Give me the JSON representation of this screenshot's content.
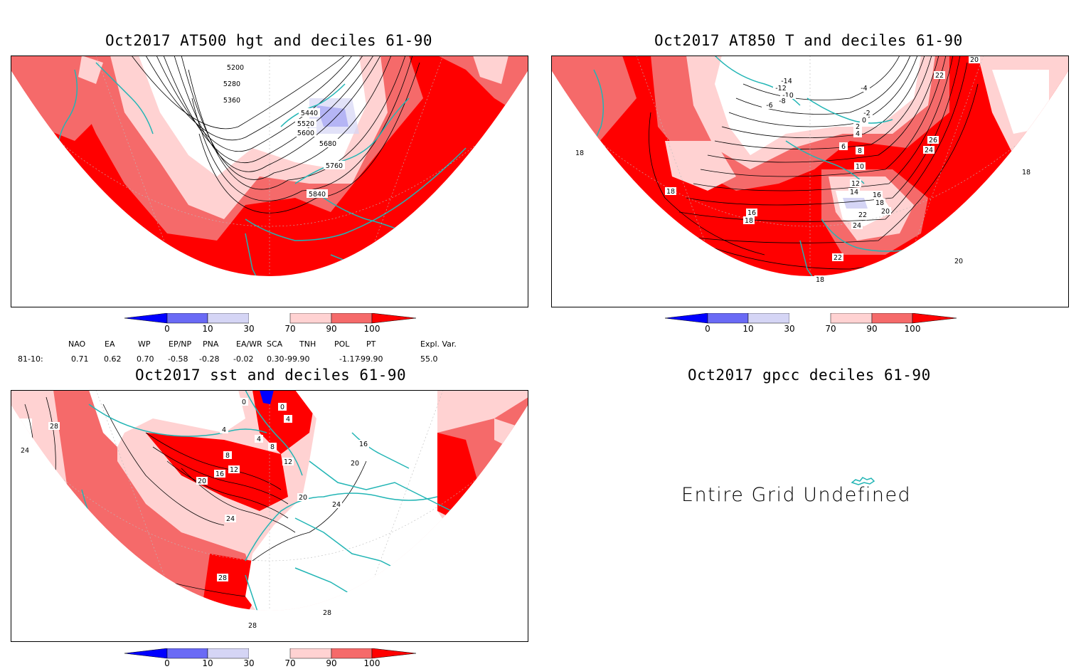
{
  "panels": [
    {
      "title": "Oct2017 AT500 hgt and deciles 61-90",
      "contour_labels": [
        "5200",
        "5280",
        "5360",
        "5440",
        "5520",
        "5600",
        "5680",
        "5760",
        "5840"
      ]
    },
    {
      "title": "Oct2017 AT850 T and deciles 61-90",
      "contour_labels": [
        "-14",
        "-12",
        "-10",
        "-8",
        "-6",
        "-4",
        "-2",
        "0",
        "2",
        "4",
        "6",
        "8",
        "10",
        "12",
        "14",
        "16",
        "18",
        "20",
        "22",
        "24",
        "26",
        "18",
        "16",
        "18",
        "18",
        "20",
        "22",
        "24",
        "18",
        "20",
        "22",
        "18"
      ]
    },
    {
      "title": "Oct2017 sst and deciles 61-90",
      "contour_labels": [
        "28",
        "24",
        "0",
        "0",
        "4",
        "4",
        "4",
        "8",
        "8",
        "12",
        "12",
        "16",
        "16",
        "20",
        "20",
        "20",
        "24",
        "24",
        "28",
        "28",
        "28"
      ]
    },
    {
      "title": "Oct2017 gpcc deciles 61-90",
      "undefined_text": "Entire Grid Undefined"
    }
  ],
  "colorbar": {
    "labels": [
      "0",
      "10",
      "30",
      "70",
      "90",
      "100"
    ],
    "colors": {
      "deep_blue": "#0000ff",
      "mid_blue": "#6a6af5",
      "light_blue": "#d5d5f5",
      "white": "#ffffff",
      "light_red": "#ffd2d2",
      "mid_red": "#f56a6a",
      "red": "#ff0000"
    }
  },
  "indices": {
    "row_label": "81-10:",
    "names": [
      "NAO",
      "EA",
      "WP",
      "EP/NP",
      "PNA",
      "EA/WR",
      "SCA",
      "TNH",
      "POL",
      "PT",
      "Expl. Var."
    ],
    "values": [
      "0.71",
      "0.62",
      "0.70",
      "-0.58",
      "-0.28",
      "-0.02",
      "0.30",
      "-99.90",
      "-1.17",
      "-99.90",
      "55.0"
    ]
  },
  "map_colors": {
    "coast": "#22b5b5",
    "grid": "#bbbbbb",
    "contour": "#000000"
  }
}
